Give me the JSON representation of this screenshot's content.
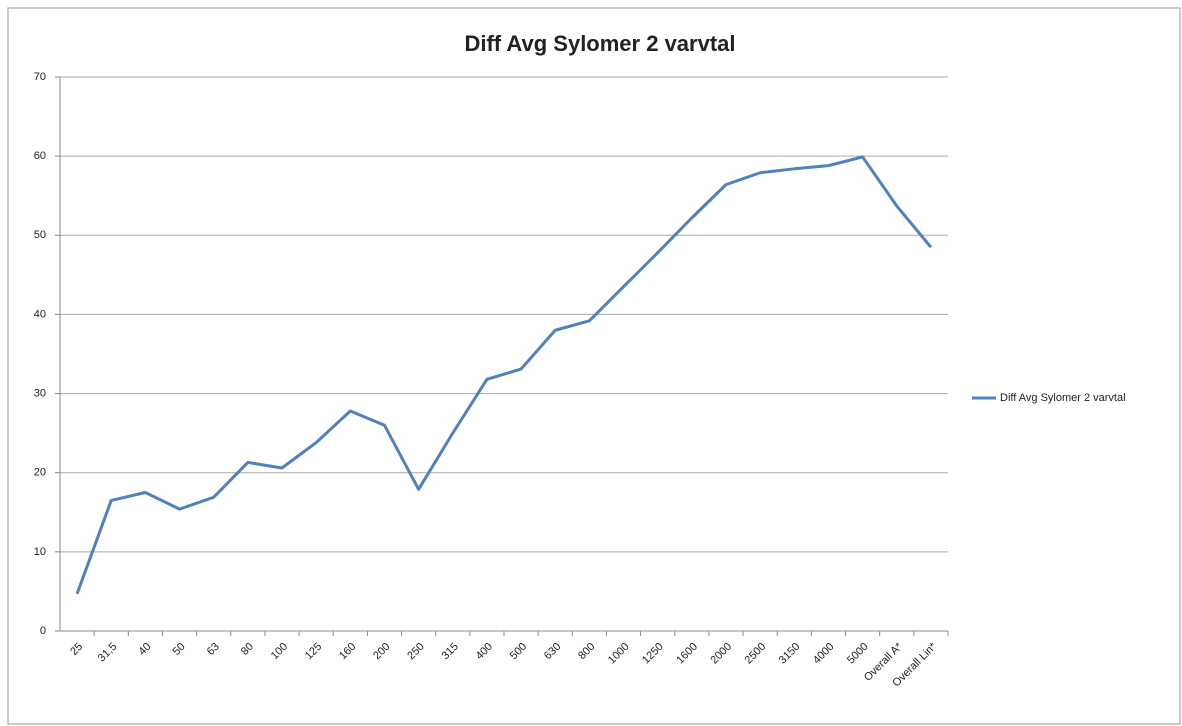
{
  "chart_data": {
    "type": "line",
    "title": "Diff Avg Sylomer 2 varvtal",
    "categories": [
      "25",
      "31,5",
      "40",
      "50",
      "63",
      "80",
      "100",
      "125",
      "160",
      "200",
      "250",
      "315",
      "400",
      "500",
      "630",
      "800",
      "1000",
      "1250",
      "1600",
      "2000",
      "2500",
      "3150",
      "4000",
      "5000",
      "Overall A*",
      "Overall Lin*"
    ],
    "series": [
      {
        "name": "Diff Avg Sylomer 2 varvtal",
        "color": "#4f81bd",
        "values": [
          4.7,
          16.5,
          17.5,
          15.4,
          16.9,
          21.3,
          20.6,
          23.8,
          27.8,
          26.0,
          17.9,
          25.0,
          31.8,
          33.1,
          38.0,
          39.2,
          43.5,
          47.8,
          52.2,
          56.4,
          57.9,
          58.4,
          58.8,
          59.9,
          53.7,
          48.5
        ]
      }
    ],
    "ylim": [
      0,
      70
    ],
    "yticks": [
      0,
      10,
      20,
      30,
      40,
      50,
      60,
      70
    ],
    "grid": true,
    "legend": "right"
  }
}
